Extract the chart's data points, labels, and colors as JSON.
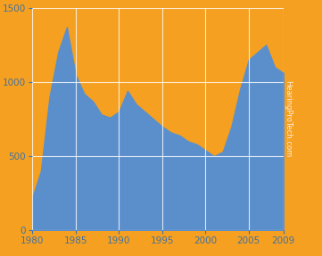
{
  "years": [
    1980,
    1981,
    1982,
    1983,
    1984,
    1985,
    1986,
    1987,
    1988,
    1989,
    1990,
    1991,
    1992,
    1993,
    1994,
    1995,
    1996,
    1997,
    1998,
    1999,
    2000,
    2001,
    2002,
    2003,
    2004,
    2005,
    2006,
    2007,
    2008,
    2009
  ],
  "values": [
    220,
    400,
    900,
    1200,
    1370,
    1050,
    920,
    870,
    780,
    760,
    800,
    940,
    850,
    800,
    750,
    700,
    660,
    640,
    600,
    580,
    540,
    500,
    530,
    700,
    950,
    1150,
    1200,
    1250,
    1100,
    1060
  ],
  "area_color": "#5B8FCC",
  "bg_color": "#F5A020",
  "ylim": [
    0,
    1500
  ],
  "xlim": [
    1980,
    2009
  ],
  "yticks": [
    0,
    500,
    1000,
    1500
  ],
  "xticks": [
    1980,
    1985,
    1990,
    1995,
    2000,
    2005,
    2009
  ],
  "grid_color": "#FFFFFF",
  "watermark": "HearingProTech.com"
}
